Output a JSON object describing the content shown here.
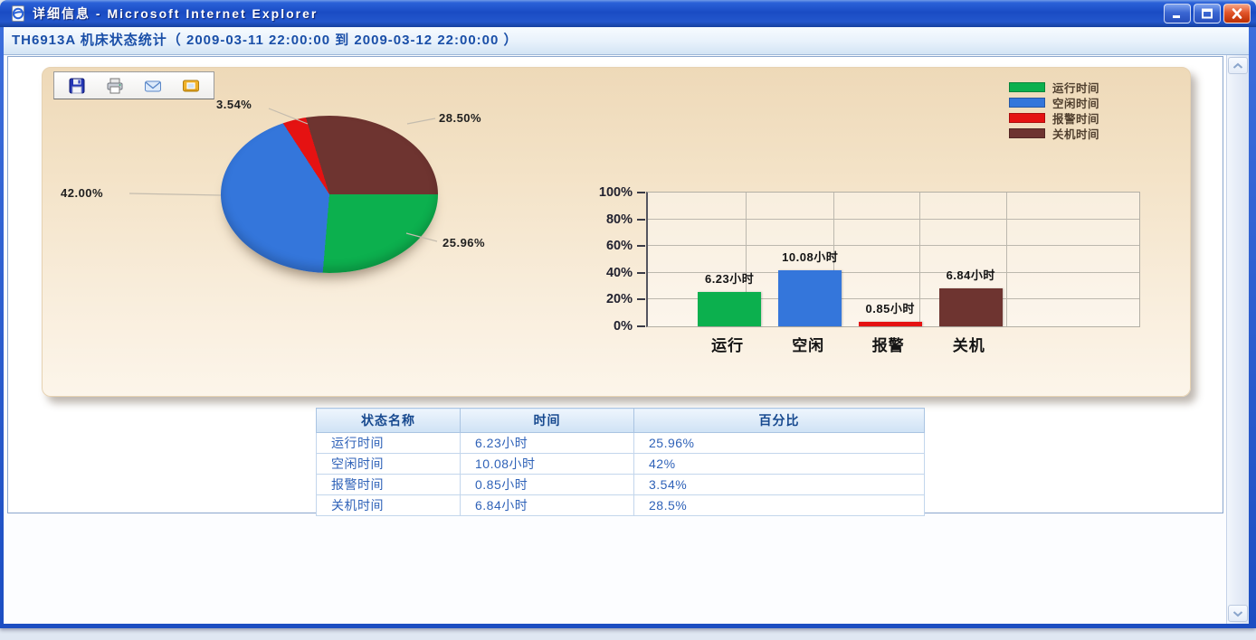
{
  "window": {
    "title": "详细信息 - Microsoft Internet Explorer",
    "icon": "ie-page-icon",
    "controls": [
      {
        "name": "minimize",
        "icon": "minimize-icon"
      },
      {
        "name": "maximize",
        "icon": "maximize-icon"
      },
      {
        "name": "close",
        "icon": "close-icon"
      }
    ]
  },
  "page": {
    "header": "TH6913A 机床状态统计（ 2009-03-11 22:00:00 到 2009-03-12 22:00:00 ）"
  },
  "chart_panel": {
    "toolbar": [
      {
        "name": "save",
        "icon": "save-icon"
      },
      {
        "name": "print",
        "icon": "printer-icon"
      },
      {
        "name": "email",
        "icon": "envelope-icon"
      },
      {
        "name": "export-image",
        "icon": "image-export-icon"
      }
    ]
  },
  "colors": {
    "run_green": "#0cb04e",
    "idle_blue": "#3476db",
    "alarm_red": "#e51212",
    "off_maroon": "#6e3430",
    "header_text_blue": "#1a4fa8",
    "titlebar_blue": "#2257c5"
  },
  "chart_data": [
    {
      "type": "pie",
      "slices": [
        {
          "label": "运行时间",
          "pct": 25.96,
          "color": "#0cb04e"
        },
        {
          "label": "空闲时间",
          "pct": 42.0,
          "color": "#3476db"
        },
        {
          "label": "报警时间",
          "pct": 3.54,
          "color": "#e51212"
        },
        {
          "label": "关机时间",
          "pct": 28.5,
          "color": "#6e3430"
        }
      ],
      "callouts": [
        {
          "text": "3.54%",
          "slice": "报警时间"
        },
        {
          "text": "28.50%",
          "slice": "关机时间"
        },
        {
          "text": "42.00%",
          "slice": "空闲时间"
        },
        {
          "text": "25.96%",
          "slice": "运行时间"
        }
      ],
      "legend": {
        "position": "top-right",
        "items": [
          "运行时间",
          "空闲时间",
          "报警时间",
          "关机时间"
        ]
      },
      "start_angle_deg": -12.54,
      "draw_order": [
        "关机时间",
        "运行时间",
        "空闲时间",
        "报警时间"
      ],
      "squash": 0.725
    },
    {
      "type": "bar",
      "categories": [
        "运行",
        "空闲",
        "报警",
        "关机"
      ],
      "values": [
        25.96,
        42,
        3.54,
        28.5
      ],
      "bar_labels": [
        "6.23小时",
        "10.08小时",
        "0.85小时",
        "6.84小时"
      ],
      "colors": [
        "#0cb04e",
        "#3476db",
        "#e51212",
        "#6e3430"
      ],
      "ylim": [
        0,
        100
      ],
      "yticks": [
        "0%",
        "20%",
        "40%",
        "60%",
        "80%",
        "100%"
      ],
      "grid": true
    }
  ],
  "table": {
    "headers": [
      "状态名称",
      "时间",
      "百分比"
    ],
    "rows": [
      [
        "运行时间",
        "6.23小时",
        "25.96%"
      ],
      [
        "空闲时间",
        "10.08小时",
        "42%"
      ],
      [
        "报警时间",
        "0.85小时",
        "3.54%"
      ],
      [
        "关机时间",
        "6.84小时",
        "28.5%"
      ]
    ]
  }
}
